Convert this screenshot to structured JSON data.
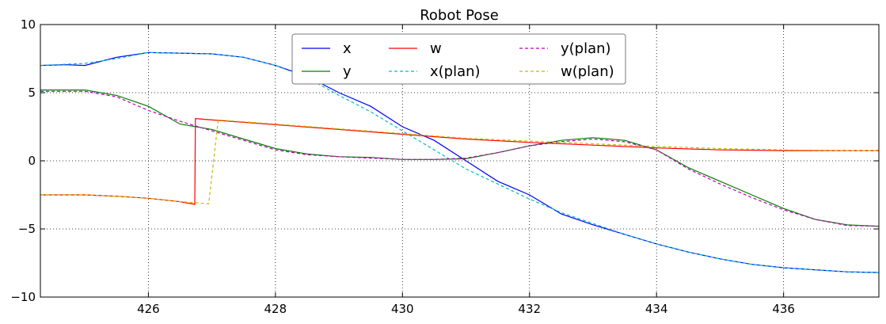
{
  "chart_data": {
    "type": "line",
    "title": "Robot Pose",
    "xlabel": "",
    "ylabel": "",
    "xlim": [
      424.3,
      437.5
    ],
    "ylim": [
      -10,
      10
    ],
    "xticks": [
      426,
      428,
      430,
      432,
      434,
      436
    ],
    "yticks": [
      -10,
      -5,
      0,
      5,
      10
    ],
    "grid": true,
    "legend_position": "upper-center",
    "series": [
      {
        "name": "x",
        "color": "#0000ff",
        "style": "solid",
        "x": [
          424.3,
          424.7,
          425.0,
          425.5,
          426.0,
          426.5,
          427.0,
          427.5,
          428.0,
          428.5,
          429.0,
          429.5,
          430.0,
          430.5,
          431.0,
          431.5,
          432.0,
          432.5,
          433.0,
          433.5,
          434.0,
          434.5,
          435.0,
          435.5,
          436.0,
          436.5,
          437.0,
          437.5
        ],
        "y": [
          7.0,
          7.05,
          7.0,
          7.6,
          7.95,
          7.9,
          7.85,
          7.6,
          7.0,
          6.2,
          5.0,
          4.0,
          2.5,
          1.5,
          0.0,
          -1.5,
          -2.5,
          -3.9,
          -4.7,
          -5.4,
          -6.1,
          -6.7,
          -7.2,
          -7.6,
          -7.85,
          -8.0,
          -8.15,
          -8.2
        ]
      },
      {
        "name": "y",
        "color": "#008000",
        "style": "solid",
        "x": [
          424.3,
          425.0,
          425.5,
          426.0,
          426.5,
          427.0,
          427.5,
          428.0,
          428.5,
          429.0,
          429.5,
          430.0,
          430.5,
          431.0,
          431.5,
          432.0,
          432.5,
          433.0,
          433.5,
          434.0,
          434.5,
          435.0,
          435.5,
          436.0,
          436.5,
          437.0,
          437.5
        ],
        "y": [
          5.2,
          5.2,
          4.8,
          4.0,
          2.7,
          2.3,
          1.6,
          0.9,
          0.5,
          0.3,
          0.25,
          0.1,
          0.1,
          0.15,
          0.6,
          1.1,
          1.5,
          1.7,
          1.5,
          0.8,
          -0.5,
          -1.5,
          -2.5,
          -3.5,
          -4.3,
          -4.7,
          -4.8
        ]
      },
      {
        "name": "w",
        "color": "#ff0000",
        "style": "solid",
        "x": [
          424.3,
          425.0,
          425.5,
          426.0,
          426.5,
          426.73,
          426.74,
          427.0,
          428.0,
          429.0,
          430.0,
          431.0,
          432.0,
          433.0,
          434.0,
          435.0,
          436.0,
          437.0,
          437.5
        ],
        "y": [
          -2.5,
          -2.5,
          -2.6,
          -2.75,
          -3.0,
          -3.2,
          3.1,
          3.0,
          2.65,
          2.3,
          1.95,
          1.6,
          1.35,
          1.15,
          0.95,
          0.8,
          0.75,
          0.75,
          0.75
        ]
      },
      {
        "name": "x(plan)",
        "color": "#00bfbf",
        "style": "dashed",
        "x": [
          424.3,
          425.0,
          425.5,
          426.0,
          426.5,
          427.0,
          427.5,
          428.0,
          428.5,
          429.0,
          429.5,
          430.0,
          430.5,
          431.0,
          431.5,
          432.0,
          432.5,
          433.0,
          433.5,
          434.0,
          434.5,
          435.0,
          435.5,
          436.0,
          436.5,
          437.0,
          437.5
        ],
        "y": [
          7.0,
          7.15,
          7.5,
          7.95,
          7.9,
          7.85,
          7.6,
          7.0,
          6.1,
          4.8,
          3.6,
          2.2,
          0.8,
          -0.6,
          -1.7,
          -2.8,
          -3.8,
          -4.6,
          -5.4,
          -6.1,
          -6.7,
          -7.2,
          -7.6,
          -7.85,
          -8.0,
          -8.15,
          -8.2
        ]
      },
      {
        "name": "y(plan)",
        "color": "#bf00bf",
        "style": "dashed",
        "x": [
          424.3,
          425.0,
          425.5,
          426.0,
          426.5,
          427.0,
          427.5,
          428.0,
          428.5,
          429.0,
          429.5,
          430.0,
          430.5,
          431.0,
          431.5,
          432.0,
          432.5,
          433.0,
          433.5,
          434.0,
          434.5,
          435.0,
          435.5,
          436.0,
          436.5,
          437.0,
          437.5
        ],
        "y": [
          5.1,
          5.1,
          4.7,
          3.7,
          2.9,
          2.2,
          1.5,
          0.8,
          0.45,
          0.3,
          0.2,
          0.1,
          0.1,
          0.2,
          0.6,
          1.1,
          1.4,
          1.6,
          1.4,
          0.8,
          -0.6,
          -1.7,
          -2.7,
          -3.6,
          -4.3,
          -4.75,
          -4.8
        ]
      },
      {
        "name": "w(plan)",
        "color": "#bfbf00",
        "style": "dashed",
        "x": [
          424.3,
          425.0,
          425.5,
          426.0,
          426.5,
          426.95,
          427.1,
          428.0,
          429.0,
          430.0,
          431.0,
          432.0,
          433.0,
          434.0,
          435.0,
          436.0,
          437.0,
          437.5
        ],
        "y": [
          -2.5,
          -2.5,
          -2.6,
          -2.75,
          -3.0,
          -3.15,
          3.0,
          2.7,
          2.35,
          2.0,
          1.65,
          1.45,
          1.25,
          1.05,
          0.9,
          0.8,
          0.75,
          0.75
        ]
      }
    ]
  }
}
